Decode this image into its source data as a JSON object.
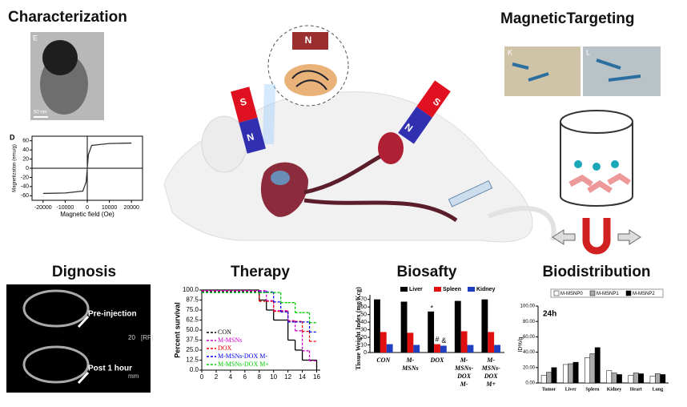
{
  "sections": {
    "characterization": "Characterization",
    "magnetic_targeting": "MagneticTargeting",
    "diagnosis": "Dignosis",
    "therapy": "Therapy",
    "biosafety": "Biosafty",
    "biodistribution": "Biodistribution"
  },
  "magnet_labels": [
    "N",
    "S",
    "N",
    "N",
    "S"
  ],
  "tem": {
    "panel_label": "E",
    "scale_bar": "50 nm"
  },
  "micrographs": [
    "K",
    "L"
  ],
  "magnetization": {
    "type": "line",
    "panel_label": "D",
    "x_label": "Magnetic field (Oe)",
    "y_label": "Magnetization (emu/g)",
    "x": [
      -20000,
      -10000,
      -2000,
      -500,
      0,
      500,
      2000,
      10000,
      20000
    ],
    "values": [
      -55,
      -54,
      -50,
      -30,
      0,
      30,
      50,
      54,
      55
    ],
    "xlim": [
      -25000,
      25000
    ],
    "ylim": [
      -70,
      70
    ],
    "xticks": [
      -20000,
      -10000,
      0,
      10000,
      20000
    ],
    "yticks": [
      -60,
      -40,
      -20,
      0,
      20,
      40,
      60
    ]
  },
  "mri": {
    "labels": [
      "Pre-injection",
      "Post 1 hour"
    ],
    "scale": [
      "20",
      "[RF]",
      "mm"
    ]
  },
  "survival": {
    "type": "line",
    "y_label": "Percent survival",
    "x": [
      0,
      8,
      9,
      10,
      11,
      12,
      13,
      14,
      15,
      16
    ],
    "xlim": [
      0,
      16.5
    ],
    "ylim": [
      0,
      100
    ],
    "xticks": [
      0,
      2,
      4,
      6,
      8,
      10,
      12,
      14,
      16
    ],
    "yticks": [
      {
        "value": 0,
        "label": "0.0"
      },
      12.5,
      {
        "value": 25,
        "label": "25.0"
      },
      37.5,
      {
        "value": 50,
        "label": "50.0"
      },
      62.5,
      {
        "value": 75,
        "label": "75.0"
      },
      87.5,
      {
        "value": 100,
        "label": "100.0"
      }
    ],
    "series": [
      {
        "name": "CON",
        "color": "#000000",
        "values": [
          100,
          87.5,
          75,
          62.5,
          62.5,
          37.5,
          25,
          12.5,
          12.5,
          0
        ]
      },
      {
        "name": "M-MSNs",
        "color": "#cc00cc",
        "values": [
          100,
          100,
          87.5,
          75,
          75,
          62.5,
          50,
          25,
          12.5,
          12.5
        ]
      },
      {
        "name": "DOX",
        "color": "#ee0000",
        "values": [
          100,
          87.5,
          87.5,
          75,
          75,
          62.5,
          62.5,
          50,
          37.5,
          37.5
        ]
      },
      {
        "name": "M-MSNs-DOX M-",
        "color": "#0000ee",
        "values": [
          100,
          100,
          100,
          87.5,
          75,
          62.5,
          62.5,
          62.5,
          50,
          50
        ]
      },
      {
        "name": "M-MSNs-DOX M+",
        "color": "#00cc00",
        "values": [
          100,
          100,
          100,
          100,
          87.5,
          87.5,
          75,
          75,
          62.5,
          62.5
        ]
      }
    ]
  },
  "biosafety": {
    "type": "bar",
    "y_label": "Tissue Weight Index (mg/Kcg)",
    "categories": [
      [
        "CON"
      ],
      [
        "M-",
        "MSNs"
      ],
      [
        "DOX"
      ],
      [
        "M-",
        "MSNs-",
        "DOX",
        "M-"
      ],
      [
        "M-",
        "MSNs-",
        "DOX",
        "M+"
      ]
    ],
    "ylim": [
      0,
      76
    ],
    "yticks": [
      0,
      10,
      20,
      30,
      40,
      50,
      60,
      70
    ],
    "series": [
      {
        "name": "Liver",
        "color": "#000000",
        "values": [
          70,
          67,
          54,
          68,
          70
        ]
      },
      {
        "name": "Spleen",
        "color": "#e01010",
        "values": [
          27,
          26,
          11,
          28,
          27
        ]
      },
      {
        "name": "Kidney",
        "color": "#1f3fbf",
        "values": [
          11,
          10,
          9,
          10,
          10
        ]
      }
    ],
    "annotations": [
      "*",
      "#",
      "&"
    ]
  },
  "biodistribution": {
    "type": "bar",
    "panel_label": "24h",
    "y_label": "ID%/g",
    "categories": [
      "Tumor",
      "Liver",
      "Spleen",
      "Kidney",
      "Heart",
      "Lung"
    ],
    "ylim": [
      0,
      100
    ],
    "yticks": [
      {
        "value": 0,
        "label": "0.00"
      },
      {
        "value": 20,
        "label": "20.00"
      },
      {
        "value": 40,
        "label": "40.00"
      },
      {
        "value": 60,
        "label": "60.00"
      },
      {
        "value": 80,
        "label": "80.00"
      },
      {
        "value": 100,
        "label": "100.00"
      }
    ],
    "series": [
      {
        "name": "M-MSNP0",
        "color": "#ffffff",
        "values": [
          10,
          24,
          33,
          16,
          10,
          9
        ]
      },
      {
        "name": "M-MSNP1",
        "color": "#aaaaaa",
        "values": [
          14,
          25,
          38,
          13,
          13,
          12
        ]
      },
      {
        "name": "M-MSNP2",
        "color": "#000000",
        "values": [
          20,
          27,
          46,
          11,
          12,
          11
        ]
      }
    ]
  }
}
